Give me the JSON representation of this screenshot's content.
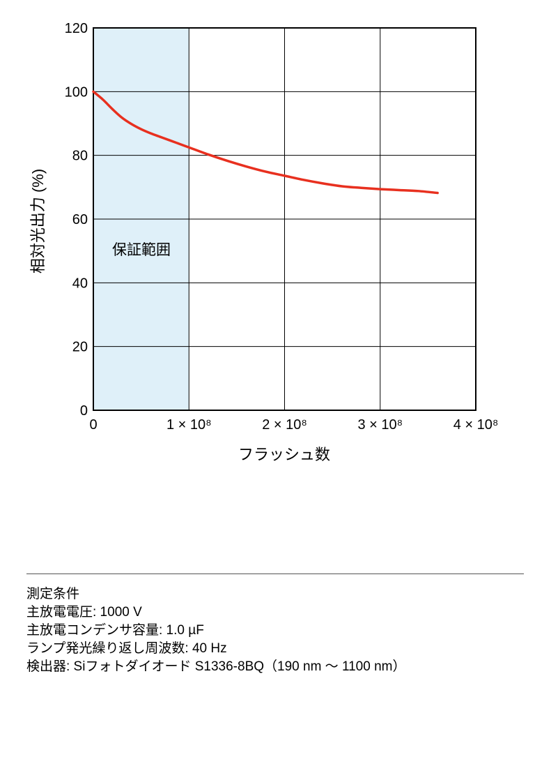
{
  "chart_data": {
    "type": "line",
    "xlabel": "フラッシュ数",
    "ylabel": "相対光出力 (%)",
    "xlim": [
      0,
      400000000
    ],
    "ylim": [
      0,
      120
    ],
    "grid": true,
    "x_ticks": [
      {
        "value": 0,
        "label": "0"
      },
      {
        "value": 100000000,
        "label": "1 × 10⁸"
      },
      {
        "value": 200000000,
        "label": "2 × 10⁸"
      },
      {
        "value": 300000000,
        "label": "3 × 10⁸"
      },
      {
        "value": 400000000,
        "label": "4 × 10⁸"
      }
    ],
    "y_ticks": [
      {
        "value": 0,
        "label": "0"
      },
      {
        "value": 20,
        "label": "20"
      },
      {
        "value": 40,
        "label": "40"
      },
      {
        "value": 60,
        "label": "60"
      },
      {
        "value": 80,
        "label": "80"
      },
      {
        "value": 100,
        "label": "100"
      },
      {
        "value": 120,
        "label": "120"
      }
    ],
    "guarantee_region": {
      "label": "保証範囲",
      "x_range": [
        0,
        100000000
      ],
      "color": "#dff0f9"
    },
    "series": [
      {
        "color": "#e8301f",
        "points": [
          [
            0,
            100
          ],
          [
            10000000,
            97.5
          ],
          [
            20000000,
            94.5
          ],
          [
            30000000,
            91.8
          ],
          [
            40000000,
            89.8
          ],
          [
            50000000,
            88.2
          ],
          [
            60000000,
            86.9
          ],
          [
            70000000,
            85.8
          ],
          [
            80000000,
            84.7
          ],
          [
            90000000,
            83.6
          ],
          [
            100000000,
            82.5
          ],
          [
            120000000,
            80.3
          ],
          [
            140000000,
            78.3
          ],
          [
            160000000,
            76.5
          ],
          [
            180000000,
            74.9
          ],
          [
            200000000,
            73.6
          ],
          [
            220000000,
            72.3
          ],
          [
            240000000,
            71.2
          ],
          [
            260000000,
            70.3
          ],
          [
            280000000,
            69.8
          ],
          [
            300000000,
            69.4
          ],
          [
            320000000,
            69.1
          ],
          [
            340000000,
            68.8
          ],
          [
            360000000,
            68.2
          ]
        ]
      }
    ]
  },
  "conditions": {
    "title": "測定条件",
    "lines": [
      "主放電電圧: 1000 V",
      "主放電コンデンサ容量: 1.0 µF",
      "ランプ発光繰り返し周波数: 40 Hz",
      "検出器: Siフォトダイオード S1336-8BQ（190 nm ～ 1100 nm）"
    ]
  }
}
